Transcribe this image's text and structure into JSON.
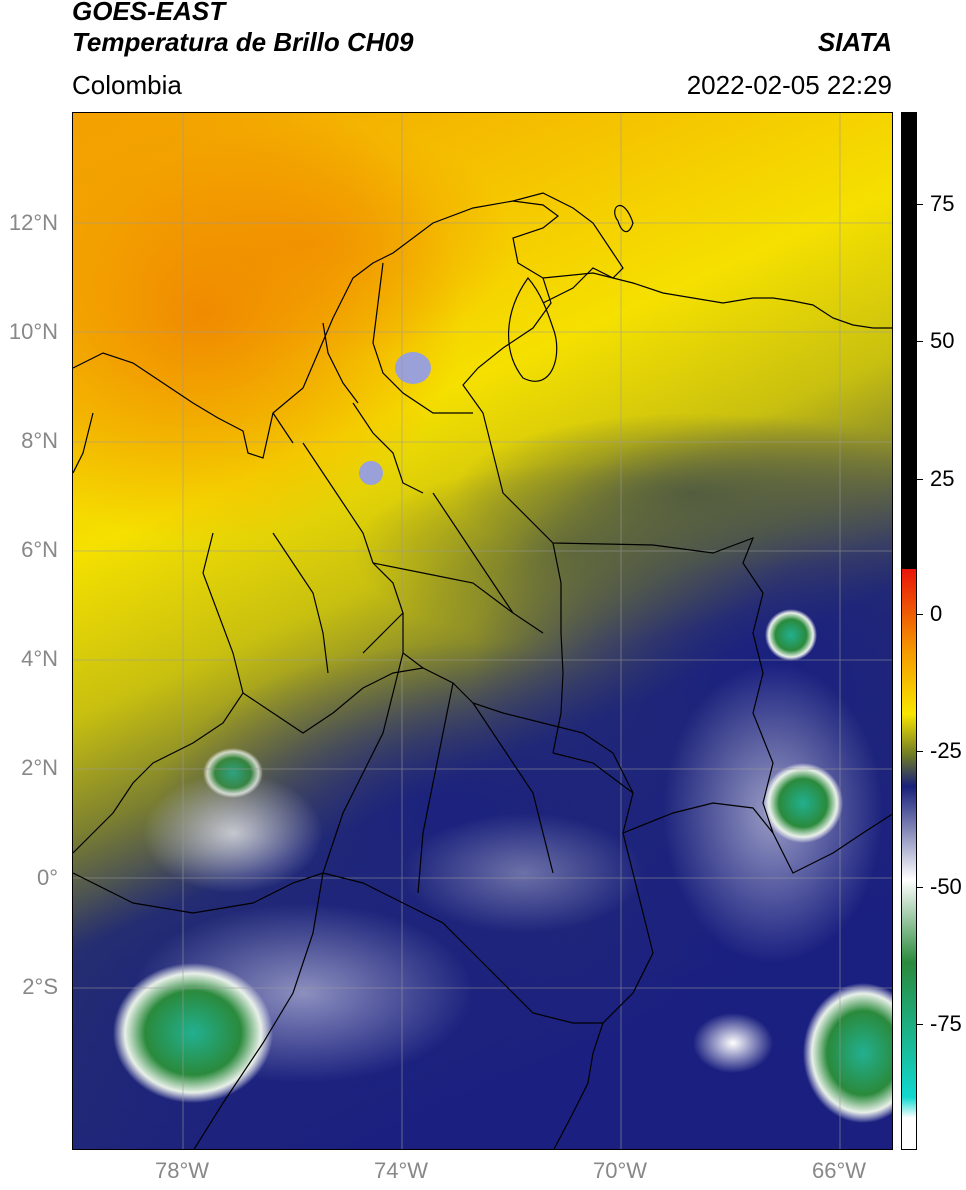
{
  "header": {
    "title_line1": "GOES-EAST",
    "title_line2": "Temperatura de Brillo CH09",
    "region": "Colombia",
    "organization": "SIATA",
    "timestamp": "2022-02-05 22:29"
  },
  "map": {
    "latitude_labels": [
      "12°N",
      "10°N",
      "8°N",
      "6°N",
      "4°N",
      "2°N",
      "0°",
      "2°S"
    ],
    "longitude_labels": [
      "78°W",
      "74°W",
      "70°W",
      "66°W"
    ]
  },
  "colorbar": {
    "tick_labels": [
      "75",
      "50",
      "25",
      "0",
      "-25",
      "-50",
      "-75"
    ],
    "colors": {
      "black": "#000000",
      "red": "#e8140a",
      "orange": "#f59a00",
      "yellow": "#f8e600",
      "olive": "#6e7a28",
      "navy": "#18207a",
      "white": "#ffffff",
      "green": "#2a8a3c",
      "cyan": "#10d8d0"
    }
  }
}
